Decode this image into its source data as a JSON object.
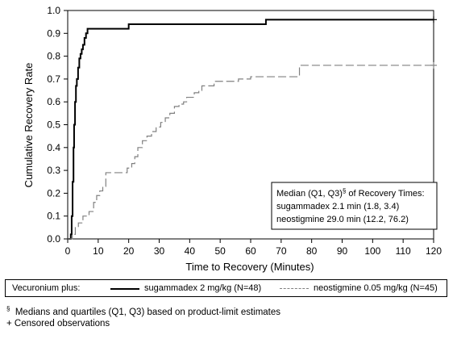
{
  "chart_data": {
    "type": "line",
    "xlabel": "Time to Recovery (Minutes)",
    "ylabel": "Cumulative Recovery Rate",
    "xlim": [
      0,
      120
    ],
    "ylim": [
      0,
      1.0
    ],
    "x_ticks": [
      0,
      10,
      20,
      30,
      40,
      50,
      60,
      70,
      80,
      90,
      100,
      110,
      120
    ],
    "y_ticks": [
      0.0,
      0.1,
      0.2,
      0.3,
      0.4,
      0.5,
      0.6,
      0.7,
      0.8,
      0.9,
      1.0
    ],
    "y_tick_labels": [
      "0.0",
      "0.1",
      "0.2",
      "0.3",
      "0.4",
      "0.5",
      "0.6",
      "0.7",
      "0.8",
      "0.9",
      "1.0"
    ],
    "grid": false,
    "series": [
      {
        "name": "sugammadex 2 mg/kg (N=48)",
        "color": "#000000",
        "style": "solid",
        "x": [
          0,
          1.0,
          1.3,
          1.6,
          1.9,
          2.1,
          2.4,
          2.7,
          3.0,
          3.4,
          3.8,
          4.2,
          4.6,
          5.0,
          5.5,
          6.0,
          6.5,
          7.0,
          19.5,
          20.0,
          64.0,
          65.0,
          120
        ],
        "y": [
          0,
          0.02,
          0.1,
          0.25,
          0.4,
          0.5,
          0.6,
          0.67,
          0.7,
          0.75,
          0.79,
          0.81,
          0.83,
          0.85,
          0.88,
          0.9,
          0.92,
          0.92,
          0.92,
          0.94,
          0.94,
          0.96,
          0.96
        ]
      },
      {
        "name": "neostigmine 0.05 mg/kg (N=45)",
        "color": "#808080",
        "style": "dashed",
        "x": [
          0,
          1.5,
          2.5,
          3.5,
          5.0,
          7.0,
          8.5,
          9.5,
          10.5,
          11.5,
          12.5,
          18.0,
          19.5,
          21.0,
          22.0,
          23.0,
          24.5,
          26.0,
          27.5,
          29.0,
          30.5,
          32.0,
          33.5,
          35.0,
          36.5,
          38.0,
          39.0,
          40.0,
          41.5,
          43.0,
          44.0,
          46.0,
          48.0,
          51.5,
          56.0,
          60.0,
          64.0,
          68.0,
          76.0,
          120
        ],
        "y": [
          0,
          0.02,
          0.05,
          0.07,
          0.1,
          0.12,
          0.16,
          0.19,
          0.21,
          0.23,
          0.29,
          0.29,
          0.31,
          0.33,
          0.36,
          0.4,
          0.43,
          0.45,
          0.47,
          0.49,
          0.51,
          0.53,
          0.55,
          0.58,
          0.59,
          0.6,
          0.62,
          0.62,
          0.64,
          0.65,
          0.67,
          0.67,
          0.69,
          0.69,
          0.7,
          0.71,
          0.71,
          0.71,
          0.76,
          0.76
        ]
      }
    ],
    "censored_markers": [
      {
        "series": 0,
        "x": 120,
        "y": 0.96
      },
      {
        "series": 1,
        "x": 120,
        "y": 0.76
      }
    ],
    "annotation_box": {
      "title": "Median (Q1, Q3)",
      "title_sup": "§",
      "title_suffix": " of Recovery Times:",
      "lines": [
        "sugammadex 2.1 min (1.8, 3.4)",
        "neostigmine 29.0 min (12.2, 76.2)"
      ]
    }
  },
  "legend": {
    "prefix": "Vecuronium plus:",
    "entries": [
      {
        "label": "sugammadex 2 mg/kg (N=48)",
        "color": "#000000",
        "style": "solid"
      },
      {
        "label": "neostigmine 0.05 mg/kg (N=45)",
        "color": "#808080",
        "style": "dashed"
      }
    ]
  },
  "footnotes": {
    "line1_symbol": "§",
    "line1_text": "  Medians and quartiles (Q1, Q3) based on product-limit estimates",
    "line2_text": "+ Censored observations"
  }
}
